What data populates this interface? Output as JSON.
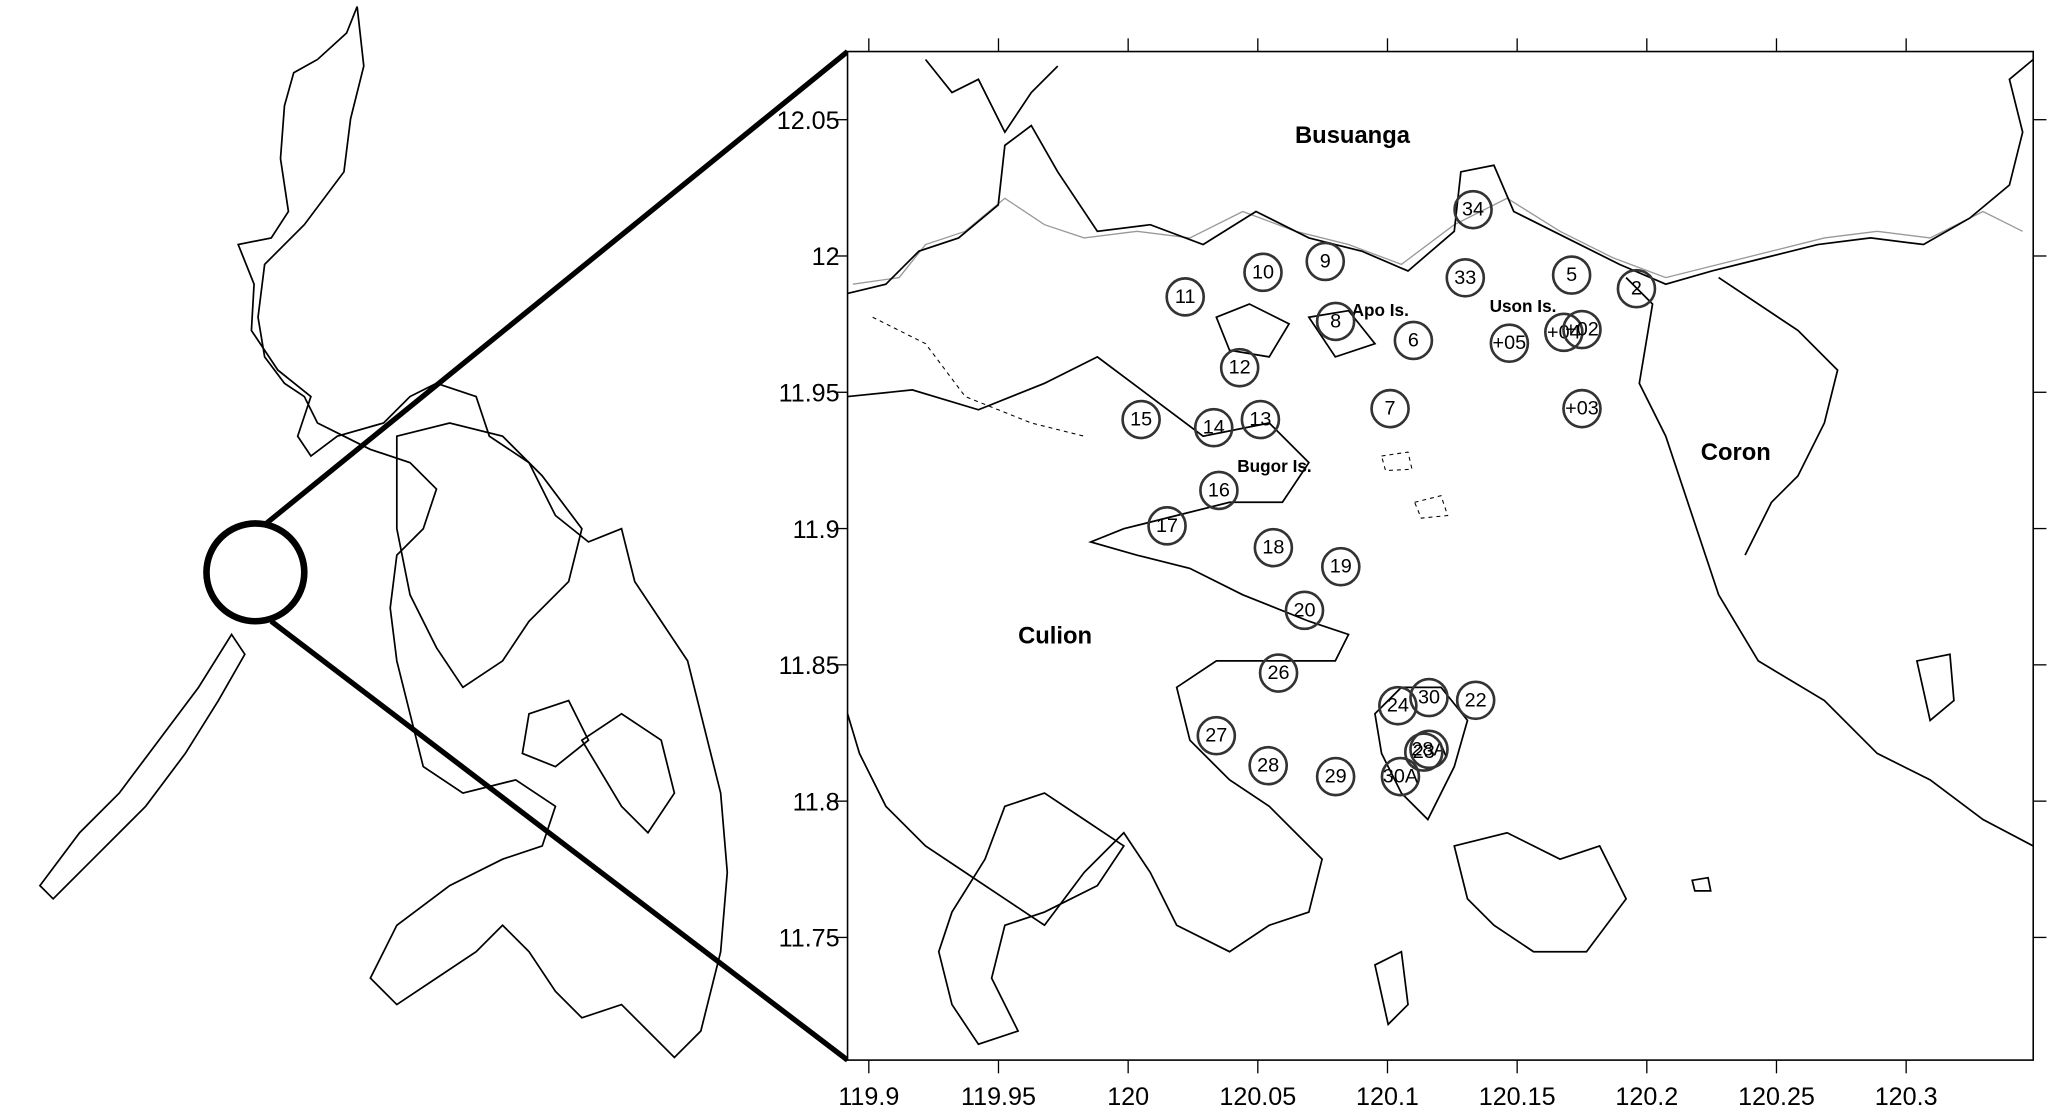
{
  "map": {
    "xlim": [
      119.8918,
      120.349
    ],
    "ylim": [
      11.705,
      12.075
    ],
    "xticks": [
      119.9,
      119.95,
      120,
      120.05,
      120.1,
      120.15,
      120.2,
      120.25,
      120.3
    ],
    "yticks": [
      11.75,
      11.8,
      11.85,
      11.9,
      11.95,
      12,
      12.05
    ],
    "places": [
      "Busuanga",
      "Culion",
      "Coron",
      "Apo Is.",
      "Uson Is.",
      "Bugor Is."
    ],
    "stations": [
      {
        "label": "34",
        "lon": 120.133,
        "lat": 12.017
      },
      {
        "label": "9",
        "lon": 120.076,
        "lat": 11.998
      },
      {
        "label": "10",
        "lon": 120.052,
        "lat": 11.994
      },
      {
        "label": "33",
        "lon": 120.13,
        "lat": 11.992
      },
      {
        "label": "5",
        "lon": 120.171,
        "lat": 11.993
      },
      {
        "label": "2",
        "lon": 120.196,
        "lat": 11.988
      },
      {
        "label": "11",
        "lon": 120.022,
        "lat": 11.985
      },
      {
        "label": "8",
        "lon": 120.08,
        "lat": 11.976
      },
      {
        "label": "6",
        "lon": 120.11,
        "lat": 11.969
      },
      {
        "label": "+05",
        "lon": 120.147,
        "lat": 11.968
      },
      {
        "label": "+04",
        "lon": 120.168,
        "lat": 11.972
      },
      {
        "label": "+02",
        "lon": 120.175,
        "lat": 11.973
      },
      {
        "label": "12",
        "lon": 120.043,
        "lat": 11.959
      },
      {
        "label": "7",
        "lon": 120.101,
        "lat": 11.944
      },
      {
        "label": "+03",
        "lon": 120.175,
        "lat": 11.944
      },
      {
        "label": "15",
        "lon": 120.005,
        "lat": 11.94
      },
      {
        "label": "14",
        "lon": 120.033,
        "lat": 11.937
      },
      {
        "label": "13",
        "lon": 120.051,
        "lat": 11.94
      },
      {
        "label": "16",
        "lon": 120.035,
        "lat": 11.914
      },
      {
        "label": "17",
        "lon": 120.015,
        "lat": 11.901
      },
      {
        "label": "18",
        "lon": 120.056,
        "lat": 11.893
      },
      {
        "label": "19",
        "lon": 120.082,
        "lat": 11.886
      },
      {
        "label": "20",
        "lon": 120.068,
        "lat": 11.87
      },
      {
        "label": "26",
        "lon": 120.058,
        "lat": 11.847
      },
      {
        "label": "24",
        "lon": 120.104,
        "lat": 11.835
      },
      {
        "label": "30",
        "lon": 120.116,
        "lat": 11.838
      },
      {
        "label": "22",
        "lon": 120.134,
        "lat": 11.837
      },
      {
        "label": "27",
        "lon": 120.034,
        "lat": 11.824
      },
      {
        "label": "28",
        "lon": 120.054,
        "lat": 11.813
      },
      {
        "label": "29",
        "lon": 120.08,
        "lat": 11.809
      },
      {
        "label": "28A",
        "lon": 120.116,
        "lat": 11.819
      },
      {
        "label": "23",
        "lon": 120.114,
        "lat": 11.818
      },
      {
        "label": "30A",
        "lon": 120.105,
        "lat": 11.809
      }
    ]
  }
}
